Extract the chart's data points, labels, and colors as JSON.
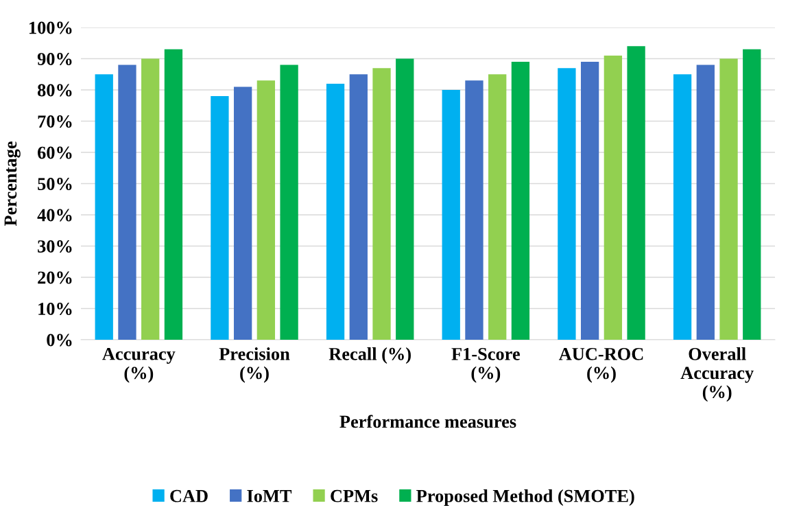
{
  "chart_data": {
    "type": "bar",
    "xlabel": "Performance measures",
    "ylabel": "Percentage",
    "categories": [
      "Accuracy\n(%)",
      "Precision\n(%)",
      "Recall (%)",
      "F1-Score\n(%)",
      "AUC-ROC\n(%)",
      "Overall\nAccuracy\n(%)"
    ],
    "series": [
      {
        "name": "CAD",
        "color": "#00b0f0",
        "values": [
          85,
          78,
          82,
          80,
          87,
          85
        ]
      },
      {
        "name": "IoMT",
        "color": "#4472c4",
        "values": [
          88,
          81,
          85,
          83,
          89,
          88
        ]
      },
      {
        "name": "CPMs",
        "color": "#92d050",
        "values": [
          90,
          83,
          87,
          85,
          91,
          90
        ]
      },
      {
        "name": "Proposed Method (SMOTE)",
        "color": "#00b050",
        "values": [
          93,
          88,
          90,
          89,
          94,
          93
        ]
      }
    ],
    "ylim": [
      0,
      100
    ],
    "yticks": [
      {
        "value": 0,
        "label": "0%"
      },
      {
        "value": 10,
        "label": "10%"
      },
      {
        "value": 20,
        "label": "20%"
      },
      {
        "value": 30,
        "label": "30%"
      },
      {
        "value": 40,
        "label": "40%"
      },
      {
        "value": 50,
        "label": "50%"
      },
      {
        "value": 60,
        "label": "60%"
      },
      {
        "value": 70,
        "label": "70%"
      },
      {
        "value": 80,
        "label": "80%"
      },
      {
        "value": 90,
        "label": "90%"
      },
      {
        "value": 100,
        "label": "100%"
      }
    ],
    "grid": "y",
    "legend": "bottom"
  }
}
